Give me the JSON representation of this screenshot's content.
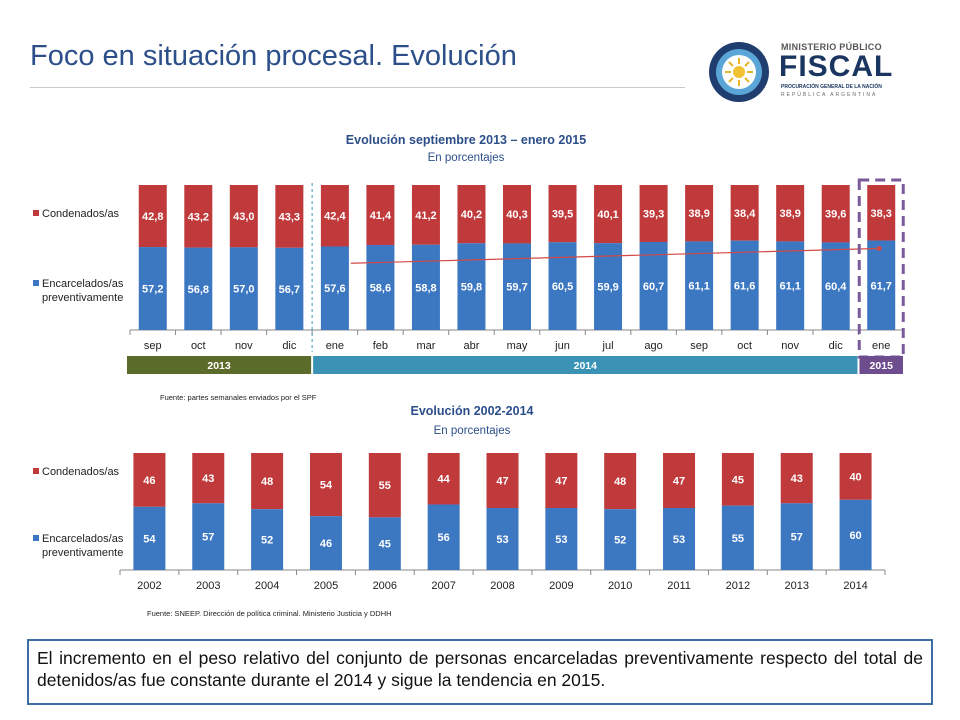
{
  "page": {
    "title": "Foco en situación procesal. Evolución",
    "bottom_text": "El incremento en el peso relativo del conjunto de personas encarceladas preventivamente respecto del total de detenidos/as fue constante durante el 2014 y sigue la tendencia en 2015."
  },
  "logo": {
    "line1": "MINISTERIO PÚBLICO",
    "line2": "FISCAL",
    "line3": "PROCURACIÓN GENERAL DE LA NACIÓN",
    "line4": "REPÚBLICA ARGENTINA"
  },
  "colors": {
    "encarcelados": "#3c77c2",
    "condenados": "#c0393b",
    "year_2013": "#5b6b2a",
    "year_2014": "#3a93b5",
    "year_2015": "#6e4d8e",
    "highlight": "#7b5a9c",
    "trend": "#d24a47",
    "title": "#2c4f8a"
  },
  "chart_data": [
    {
      "type": "bar",
      "stacked": true,
      "percent": true,
      "title": "Evolución septiembre 2013 – enero 2015",
      "subtitle": "En porcentajes",
      "categories": [
        "sep",
        "oct",
        "nov",
        "dic",
        "ene",
        "feb",
        "mar",
        "abr",
        "may",
        "jun",
        "jul",
        "ago",
        "sep",
        "oct",
        "nov",
        "dic",
        "ene"
      ],
      "series": [
        {
          "name": "Encarcelados/as preventivamente",
          "values": [
            57.2,
            56.8,
            57.0,
            56.7,
            57.6,
            58.6,
            58.8,
            59.8,
            59.7,
            60.5,
            59.9,
            60.7,
            61.1,
            61.6,
            61.1,
            60.4,
            61.7
          ],
          "labels": [
            "57,2",
            "56,8",
            "57,0",
            "56,7",
            "57,6",
            "58,6",
            "58,8",
            "59,8",
            "59,7",
            "60,5",
            "59,9",
            "60,7",
            "61,1",
            "61,6",
            "61,1",
            "60,4",
            "61,7"
          ]
        },
        {
          "name": "Condenados/as",
          "values": [
            42.8,
            43.2,
            43.0,
            43.3,
            42.4,
            41.4,
            41.2,
            40.2,
            40.3,
            39.5,
            40.1,
            39.3,
            38.9,
            38.4,
            38.9,
            39.6,
            38.3
          ],
          "labels": [
            "42,8",
            "43,2",
            "43,0",
            "43,3",
            "42,4",
            "41,4",
            "41,2",
            "40,2",
            "40,3",
            "39,5",
            "40,1",
            "39,3",
            "38,9",
            "38,4",
            "38,9",
            "39,6",
            "38,3"
          ]
        }
      ],
      "legend": [
        "Condenados/as",
        "Encarcelados/as preventivamente"
      ],
      "legend_position": "left",
      "year_bands": [
        {
          "label": "2013",
          "from": 0,
          "to": 3
        },
        {
          "label": "2014",
          "from": 4,
          "to": 15
        },
        {
          "label": "2015",
          "from": 16,
          "to": 16
        }
      ],
      "trendline": true,
      "highlight_category_index": 16,
      "source": "Fuente: partes semanales enviados por el SPF"
    },
    {
      "type": "bar",
      "stacked": true,
      "percent": true,
      "title": "Evolución 2002-2014",
      "subtitle": "En porcentajes",
      "categories": [
        "2002",
        "2003",
        "2004",
        "2005",
        "2006",
        "2007",
        "2008",
        "2009",
        "2010",
        "2011",
        "2012",
        "2013",
        "2014"
      ],
      "series": [
        {
          "name": "Encarcelados/as preventivamente",
          "values": [
            54,
            57,
            52,
            46,
            45,
            56,
            53,
            53,
            52,
            53,
            55,
            57,
            60
          ]
        },
        {
          "name": "Condenados/as",
          "values": [
            46,
            43,
            48,
            54,
            55,
            44,
            47,
            47,
            48,
            47,
            45,
            43,
            40
          ]
        }
      ],
      "legend": [
        "Condenados/as",
        "Encarcelados/as preventivamente"
      ],
      "legend_position": "left",
      "source": "Fuente: SNEEP. Dirección de política criminal. Ministerio Justicia y DDHH"
    }
  ]
}
